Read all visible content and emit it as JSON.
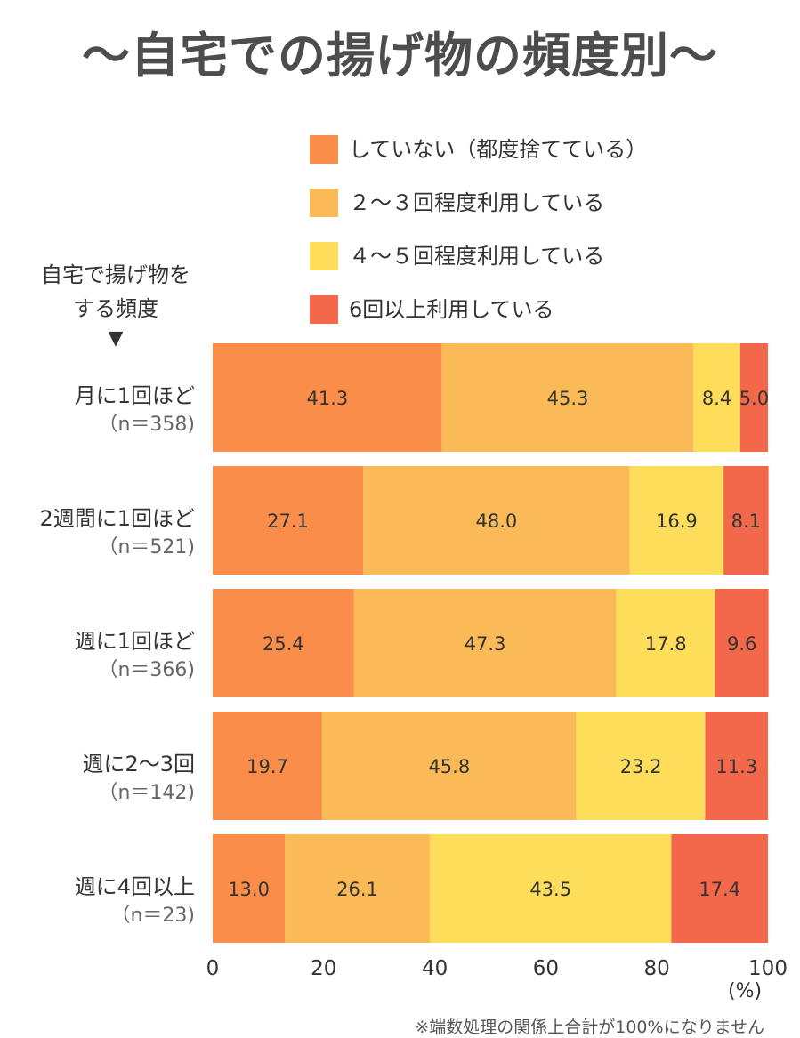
{
  "title": "〜自宅での揚げ物の頻度別〜",
  "axis_caption": {
    "line1": "自宅で揚げ物を",
    "line2": "する頻度",
    "marker": "▼"
  },
  "footnote": "※端数処理の関係上合計が100%になりません",
  "colors": {
    "series": [
      "#FB8D4A",
      "#FBBA58",
      "#FDDD5A",
      "#F3684A"
    ]
  },
  "chart_data": {
    "type": "bar",
    "orientation": "horizontal",
    "stacked": true,
    "categories": [
      "月に1回ほど",
      "2週間に1回ほど",
      "週に1回ほど",
      "週に2〜3回",
      "週に4回以上"
    ],
    "category_n": [
      "（n＝358)",
      "（n＝521)",
      "（n＝366)",
      "（n＝142)",
      "（n＝23)"
    ],
    "series": [
      {
        "name": "していない（都度捨てている）",
        "values": [
          41.3,
          27.1,
          25.4,
          19.7,
          13.0
        ]
      },
      {
        "name": "2〜3回程度利用している",
        "values": [
          45.3,
          48.0,
          47.3,
          45.8,
          26.1
        ]
      },
      {
        "name": "4〜5回程度利用している",
        "values": [
          8.4,
          16.9,
          17.8,
          23.2,
          43.5
        ]
      },
      {
        "name": "6回以上利用している",
        "values": [
          5.0,
          8.1,
          9.6,
          11.3,
          17.4
        ]
      }
    ],
    "legend_labels": [
      "していない（都度捨てている）",
      "２〜３回程度利用している",
      "４〜５回程度利用している",
      "6回以上利用している"
    ],
    "xlim": [
      0,
      100
    ],
    "xticks": [
      "0",
      "20",
      "40",
      "60",
      "80",
      "100"
    ],
    "xunit": "(%)",
    "legend_position": "top-right"
  }
}
